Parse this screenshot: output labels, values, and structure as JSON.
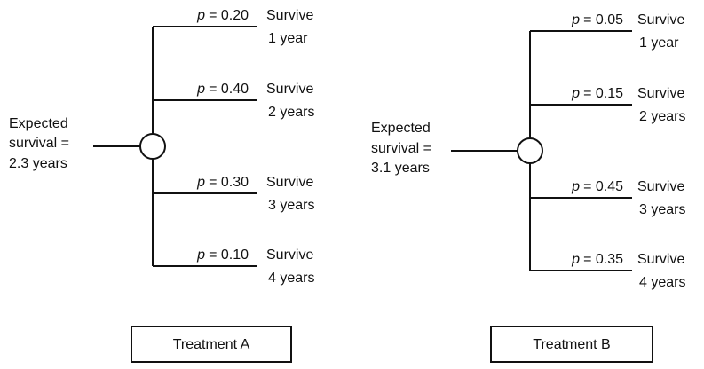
{
  "trees": [
    {
      "expected": [
        "Expected",
        "survival =",
        "2.3 years"
      ],
      "branches": [
        {
          "symbol": "p",
          "probability": "= 0.20",
          "outcome": [
            "Survive",
            "1 year"
          ]
        },
        {
          "symbol": "p",
          "probability": "= 0.40",
          "outcome": [
            "Survive",
            "2 years"
          ]
        },
        {
          "symbol": "p",
          "probability": "= 0.30",
          "outcome": [
            "Survive",
            "3 years"
          ]
        },
        {
          "symbol": "p",
          "probability": "= 0.10",
          "outcome": [
            "Survive",
            "4 years"
          ]
        }
      ],
      "treatment": "Treatment A"
    },
    {
      "expected": [
        "Expected",
        "survival =",
        "3.1 years"
      ],
      "branches": [
        {
          "symbol": "p",
          "probability": "= 0.05",
          "outcome": [
            "Survive",
            "1 year"
          ]
        },
        {
          "symbol": "p",
          "probability": "= 0.15",
          "outcome": [
            "Survive",
            "2 years"
          ]
        },
        {
          "symbol": "p",
          "probability": "= 0.45",
          "outcome": [
            "Survive",
            "3 years"
          ]
        },
        {
          "symbol": "p",
          "probability": "= 0.35",
          "outcome": [
            "Survive",
            "4 years"
          ]
        }
      ],
      "treatment": "Treatment B"
    }
  ]
}
